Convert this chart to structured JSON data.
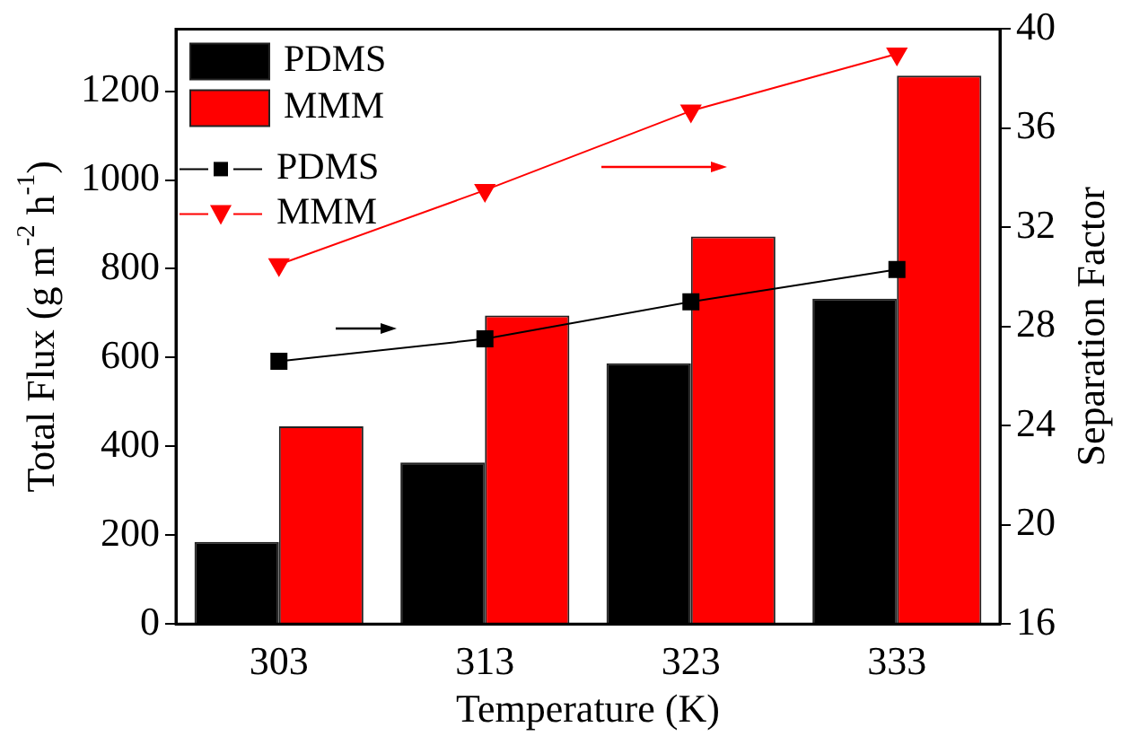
{
  "chart_data": {
    "type": "bar",
    "xlabel": "Temperature (K)",
    "ylabel": "Total Flux (g m$^{-2}$ h$^{-1}$)",
    "y2label": "Separation Factor",
    "categories": [
      "303",
      "313",
      "323",
      "333"
    ],
    "series": [
      {
        "name": "PDMS",
        "color": "#000000",
        "values": [
          185,
          364,
          587,
          733
        ]
      },
      {
        "name": "MMM",
        "color": "#ff0000",
        "values": [
          445,
          695,
          873,
          1235
        ]
      },
      {
        "name": "PDMS",
        "type": "line",
        "axis": "y2",
        "marker": "square",
        "color": "#000000",
        "values": [
          26.6,
          27.5,
          29.0,
          30.3
        ]
      },
      {
        "name": "MMM",
        "type": "line",
        "axis": "y2",
        "marker": "triangle",
        "color": "#ff0000",
        "values": [
          30.5,
          33.5,
          36.7,
          39.0
        ]
      }
    ],
    "ylim": [
      0,
      1340
    ],
    "yticks": [
      0,
      200,
      400,
      600,
      800,
      1000,
      1200
    ],
    "y2lim": [
      16,
      40
    ],
    "y2ticks": [
      16,
      20,
      24,
      28,
      32,
      36,
      40
    ],
    "legend": "top left",
    "grid": false
  }
}
